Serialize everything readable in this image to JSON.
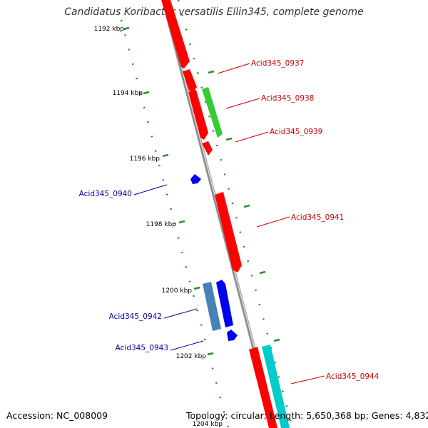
{
  "title": "Candidatus Koribacter versatilis Ellin345, complete genome",
  "footer": {
    "accession": "Accession: NC_008009",
    "topology": "Topology: circular; Length: 5,650,368 bp; Genes: 4,832"
  },
  "colors": {
    "backbone": "#8c8c8c",
    "ticks": "#2e8b2e",
    "cds_red": "#ff0000",
    "cds_green": "#33cc33",
    "cds_blue": "#0000ee",
    "cds_steel": "#4682b4",
    "cds_cyan": "#00cccc",
    "label_red": "#cc0000",
    "label_blue": "#0000aa"
  },
  "scale_labels": [
    "1192 kbp",
    "1194 kbp",
    "1196 kbp",
    "1198 kbp",
    "1200 kbp",
    "1202 kbp",
    "1204 kbp"
  ],
  "gene_labels": [
    {
      "text": "Acid345_0937",
      "side": "right",
      "color": "red"
    },
    {
      "text": "Acid345_0938",
      "side": "right",
      "color": "red"
    },
    {
      "text": "Acid345_0939",
      "side": "right",
      "color": "red"
    },
    {
      "text": "Acid345_0940",
      "side": "left",
      "color": "blue"
    },
    {
      "text": "Acid345_0941",
      "side": "right",
      "color": "red"
    },
    {
      "text": "Acid345_0942",
      "side": "left",
      "color": "blue"
    },
    {
      "text": "Acid345_0943",
      "side": "left",
      "color": "blue"
    },
    {
      "text": "Acid345_0944",
      "side": "right",
      "color": "red"
    }
  ]
}
